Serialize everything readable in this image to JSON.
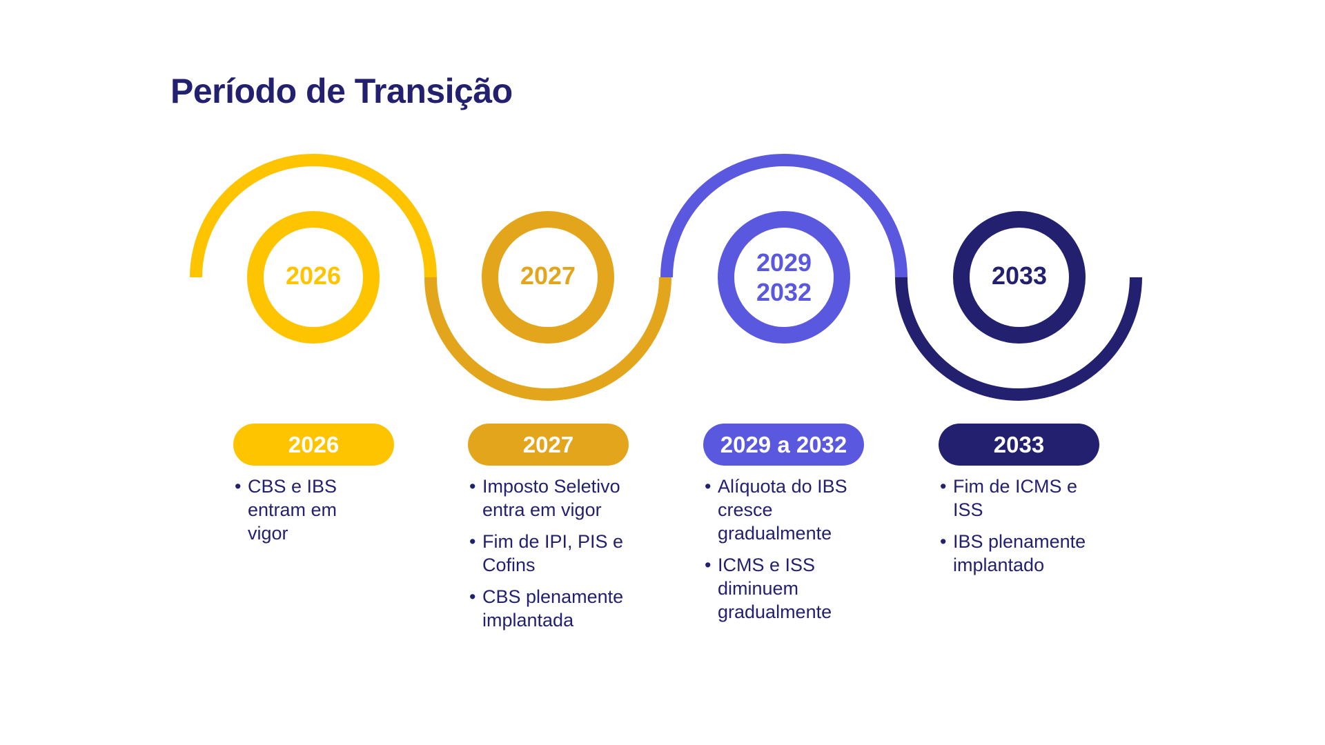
{
  "title": "Período de Transição",
  "colors": {
    "yellow": "#fec400",
    "amber": "#e3a51c",
    "purple": "#5a58de",
    "navy": "#22206f",
    "text": "#22206f"
  },
  "steps": [
    {
      "circle_lines": [
        "2026"
      ],
      "pill": "2026",
      "color": "yellow",
      "bullets": [
        "CBS e IBS entram em vigor"
      ]
    },
    {
      "circle_lines": [
        "2027"
      ],
      "pill": "2027",
      "color": "amber",
      "bullets": [
        "Imposto Seletivo entra em vigor",
        "Fim de IPI, PIS e Cofins",
        "CBS plenamente implantada"
      ]
    },
    {
      "circle_lines": [
        "2029",
        "2032"
      ],
      "pill": "2029 a 2032",
      "color": "purple",
      "bullets": [
        "Alíquota do IBS cresce gradualmente",
        "ICMS e ISS diminuem gradualmente"
      ]
    },
    {
      "circle_lines": [
        "2033"
      ],
      "pill": "2033",
      "color": "navy",
      "bullets": [
        "Fim de ICMS e ISS",
        "IBS plenamente implantado"
      ]
    }
  ]
}
